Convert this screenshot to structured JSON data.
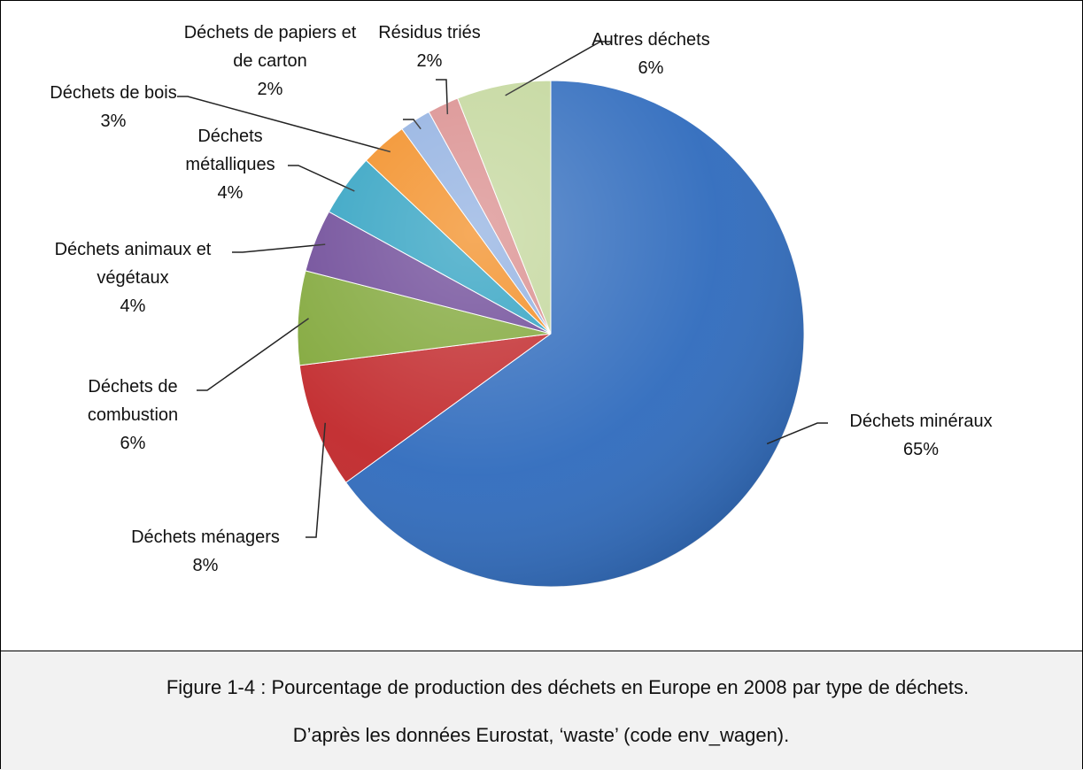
{
  "chart_data": {
    "type": "pie",
    "categories": [
      "Déchets minéraux",
      "Déchets ménagers",
      "Déchets de combustion",
      "Déchets animaux et végétaux",
      "Déchets métalliques",
      "Déchets de bois",
      "Déchets de papiers et de carton",
      "Résidus triés",
      "Autres déchets"
    ],
    "values": [
      65,
      8,
      6,
      4,
      4,
      3,
      2,
      2,
      6
    ],
    "value_labels": [
      "65%",
      "8%",
      "6%",
      "4%",
      "4%",
      "3%",
      "2%",
      "2%",
      "6%"
    ],
    "colors": [
      "#2f6bbd",
      "#c1272a",
      "#7fa637",
      "#6a4595",
      "#2a9fc0",
      "#f28a1d",
      "#8eaee0",
      "#d98b8b",
      "#c2d69a"
    ]
  },
  "caption": [
    "Figure 1-4 : Pourcentage de production des déchets en Europe en 2008 par type de déchets.",
    "D’après les données Eurostat, ‘waste’ (code env_wagen)."
  ]
}
